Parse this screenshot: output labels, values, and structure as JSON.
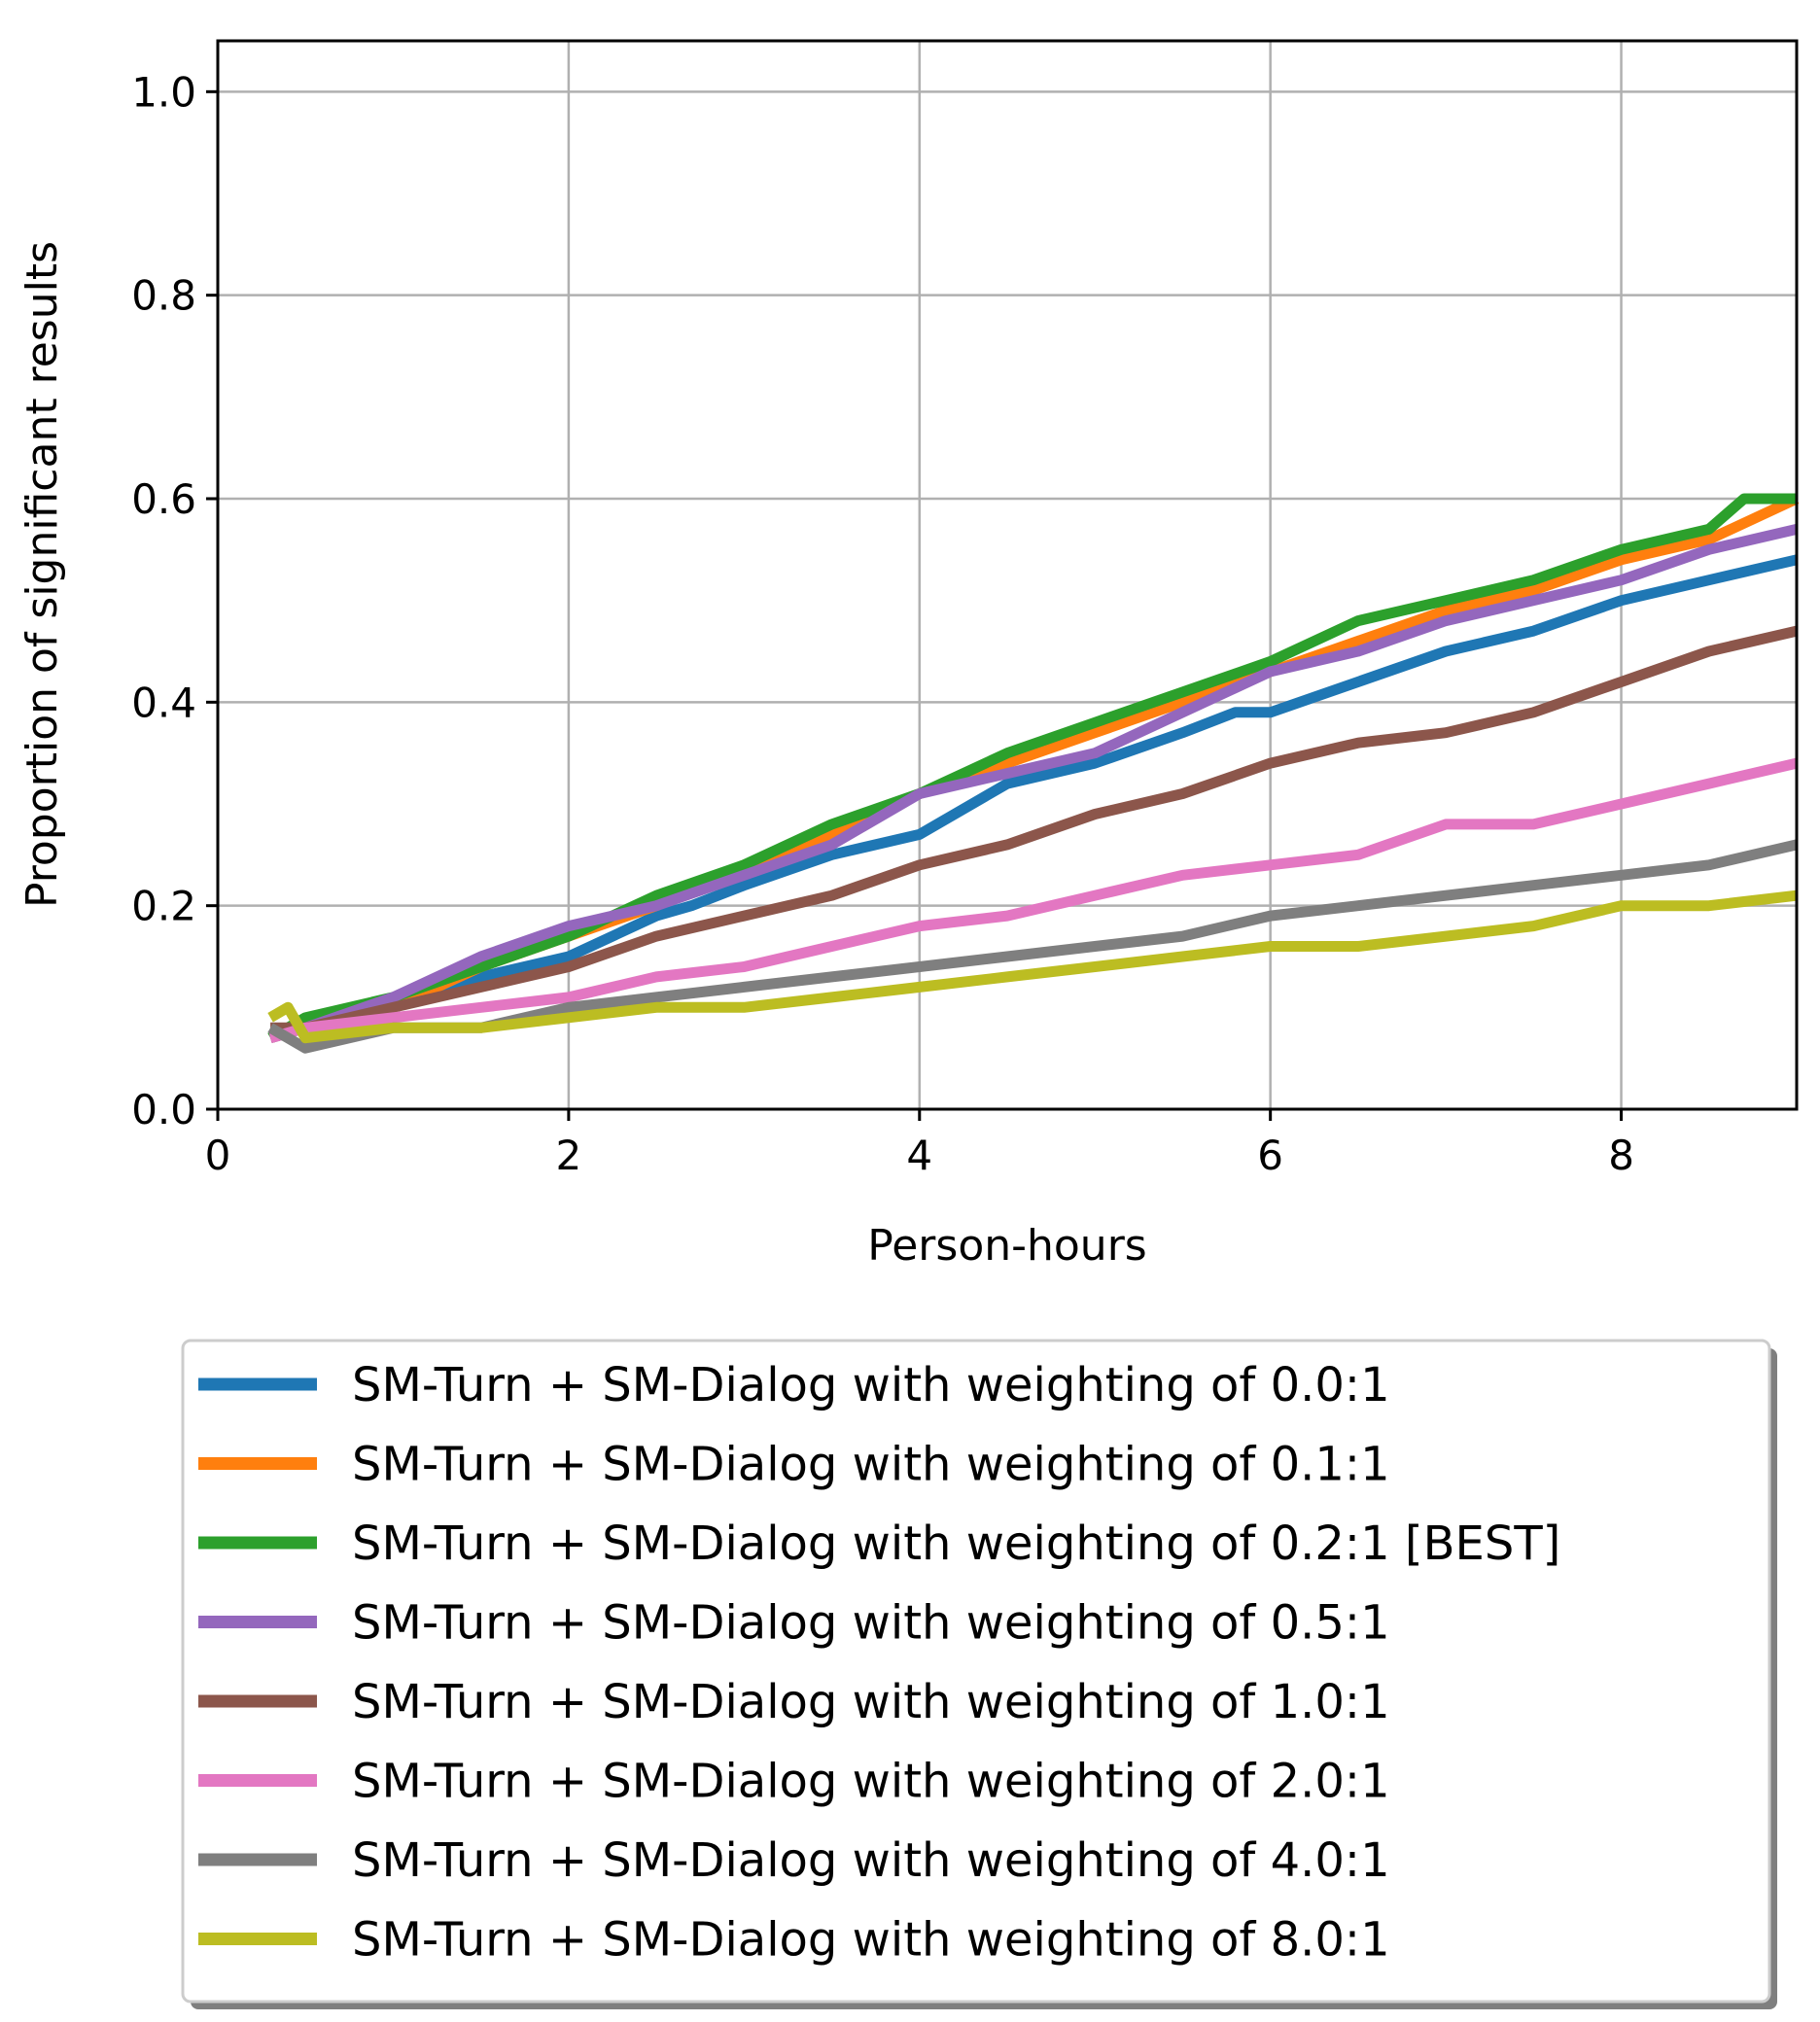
{
  "chart_data": {
    "type": "line",
    "title": "",
    "xlabel": "Person-hours",
    "ylabel": "Proportion of significant results",
    "xlim": [
      0,
      9
    ],
    "ylim": [
      0,
      1.05
    ],
    "xticks": [
      0,
      2,
      4,
      6,
      8
    ],
    "xtick_labels": [
      "0",
      "2",
      "4",
      "6",
      "8"
    ],
    "yticks": [
      0.0,
      0.2,
      0.4,
      0.6,
      0.8,
      1.0
    ],
    "ytick_labels": [
      "0.0",
      "0.2",
      "0.4",
      "0.6",
      "0.8",
      "1.0"
    ],
    "grid": true,
    "legend_position": "below plot",
    "series": [
      {
        "name": "SM-Turn + SM-Dialog with weighting of 0.0:1",
        "color": "#1f77b4",
        "x": [
          0.3,
          0.5,
          1,
          1.5,
          2,
          2.5,
          2.7,
          3,
          3.5,
          4,
          4.5,
          5,
          5.5,
          5.8,
          6,
          6.5,
          7,
          7.5,
          8,
          8.5,
          9
        ],
        "y": [
          0.07,
          0.08,
          0.1,
          0.13,
          0.15,
          0.19,
          0.2,
          0.22,
          0.25,
          0.27,
          0.32,
          0.34,
          0.37,
          0.39,
          0.39,
          0.42,
          0.45,
          0.47,
          0.5,
          0.52,
          0.54
        ]
      },
      {
        "name": "SM-Turn + SM-Dialog with weighting of 0.1:1",
        "color": "#ff7f0e",
        "x": [
          0.3,
          0.5,
          1,
          1.5,
          2,
          2.5,
          3,
          3.5,
          4,
          4.5,
          5,
          5.5,
          6,
          6.5,
          7,
          7.5,
          8,
          8.5,
          9
        ],
        "y": [
          0.07,
          0.08,
          0.1,
          0.14,
          0.17,
          0.2,
          0.24,
          0.27,
          0.31,
          0.34,
          0.37,
          0.4,
          0.43,
          0.46,
          0.49,
          0.51,
          0.54,
          0.56,
          0.6
        ]
      },
      {
        "name": "SM-Turn + SM-Dialog with weighting of 0.2:1 [BEST]",
        "color": "#2ca02c",
        "x": [
          0.3,
          0.5,
          1,
          1.5,
          2,
          2.5,
          3,
          3.5,
          4,
          4.5,
          5,
          5.5,
          6,
          6.5,
          7,
          7.5,
          8,
          8.5,
          8.7,
          9
        ],
        "y": [
          0.07,
          0.09,
          0.11,
          0.14,
          0.17,
          0.21,
          0.24,
          0.28,
          0.31,
          0.35,
          0.38,
          0.41,
          0.44,
          0.48,
          0.5,
          0.52,
          0.55,
          0.57,
          0.6,
          0.6
        ]
      },
      {
        "name": "SM-Turn + SM-Dialog with weighting of 0.5:1",
        "color": "#9467bd",
        "x": [
          0.3,
          0.5,
          1,
          1.5,
          2,
          2.5,
          3,
          3.5,
          4,
          4.5,
          5,
          5.5,
          6,
          6.5,
          7,
          7.5,
          8,
          8.5,
          9
        ],
        "y": [
          0.07,
          0.08,
          0.11,
          0.15,
          0.18,
          0.2,
          0.23,
          0.26,
          0.31,
          0.33,
          0.35,
          0.39,
          0.43,
          0.45,
          0.48,
          0.5,
          0.52,
          0.55,
          0.57
        ]
      },
      {
        "name": "SM-Turn + SM-Dialog with weighting of 1.0:1",
        "color": "#8c564b",
        "x": [
          0.3,
          0.5,
          1,
          1.5,
          2,
          2.5,
          3,
          3.5,
          4,
          4.5,
          5,
          5.5,
          6,
          6.5,
          7,
          7.5,
          8,
          8.5,
          9
        ],
        "y": [
          0.08,
          0.08,
          0.1,
          0.12,
          0.14,
          0.17,
          0.19,
          0.21,
          0.24,
          0.26,
          0.29,
          0.31,
          0.34,
          0.36,
          0.37,
          0.39,
          0.42,
          0.45,
          0.47
        ]
      },
      {
        "name": "SM-Turn + SM-Dialog with weighting of 2.0:1",
        "color": "#e377c2",
        "x": [
          0.3,
          0.5,
          1,
          1.5,
          2,
          2.5,
          3,
          3.5,
          4,
          4.5,
          5,
          5.5,
          6,
          6.5,
          7,
          7.5,
          8,
          8.5,
          9
        ],
        "y": [
          0.07,
          0.08,
          0.09,
          0.1,
          0.11,
          0.13,
          0.14,
          0.16,
          0.18,
          0.19,
          0.21,
          0.23,
          0.24,
          0.25,
          0.28,
          0.28,
          0.3,
          0.32,
          0.34
        ]
      },
      {
        "name": "SM-Turn + SM-Dialog with weighting of 4.0:1",
        "color": "#7f7f7f",
        "x": [
          0.3,
          0.5,
          1,
          1.5,
          2,
          2.5,
          3,
          3.5,
          4,
          4.5,
          5,
          5.5,
          6,
          6.5,
          7,
          7.5,
          8,
          8.5,
          9
        ],
        "y": [
          0.08,
          0.06,
          0.08,
          0.08,
          0.1,
          0.11,
          0.12,
          0.13,
          0.14,
          0.15,
          0.16,
          0.17,
          0.19,
          0.2,
          0.21,
          0.22,
          0.23,
          0.24,
          0.26
        ]
      },
      {
        "name": "SM-Turn + SM-Dialog with weighting of 8.0:1",
        "color": "#bcbd22",
        "x": [
          0.3,
          0.4,
          0.5,
          1,
          1.5,
          2,
          2.5,
          3,
          3.5,
          4,
          4.5,
          5,
          5.5,
          6,
          6.5,
          7,
          7.5,
          8,
          8.5,
          9
        ],
        "y": [
          0.09,
          0.1,
          0.07,
          0.08,
          0.08,
          0.09,
          0.1,
          0.1,
          0.11,
          0.12,
          0.13,
          0.14,
          0.15,
          0.16,
          0.16,
          0.17,
          0.18,
          0.2,
          0.2,
          0.21
        ]
      }
    ]
  }
}
